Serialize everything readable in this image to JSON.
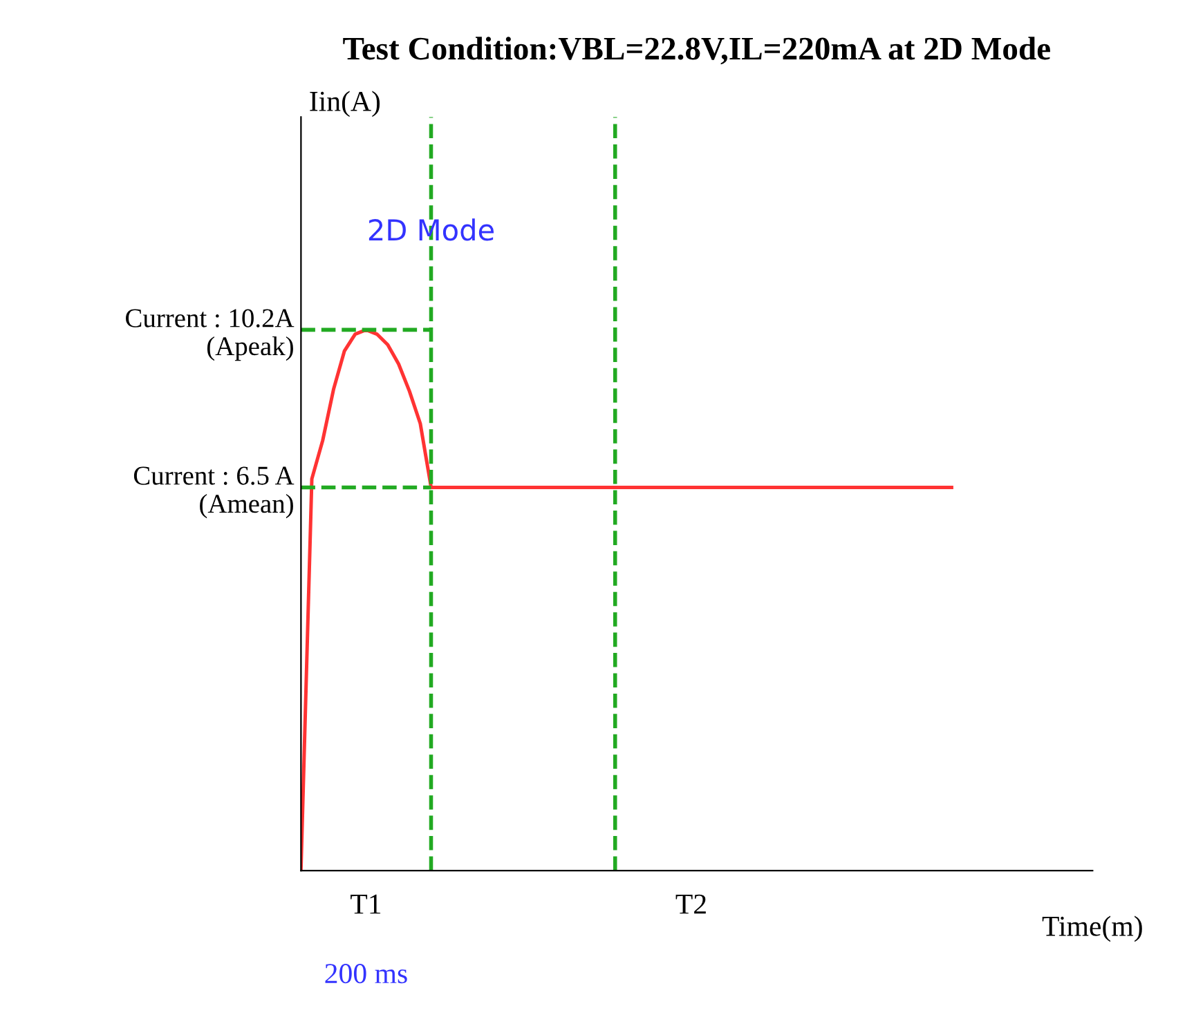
{
  "chart_data": {
    "type": "line",
    "title": "Test Condition:VBL=22.8V,IL=220mA at 2D Mode",
    "xlabel": "Time(m)",
    "ylabel": "Iin(A)",
    "categories": [
      null,
      null,
      null,
      null,
      null,
      null,
      "T1",
      null,
      null,
      null,
      null,
      null,
      null,
      null,
      null,
      null,
      null,
      null,
      null,
      null,
      null,
      null,
      null,
      null,
      null,
      null,
      null,
      null,
      null,
      null,
      null,
      null,
      null,
      null,
      null,
      null,
      "T2",
      null,
      null,
      null,
      null,
      null,
      null,
      null,
      null,
      null,
      null,
      null,
      null,
      null,
      null,
      null,
      null,
      null,
      null,
      null,
      null,
      null,
      null,
      null,
      null,
      null,
      null,
      null,
      null,
      null,
      null,
      null,
      null,
      null,
      null,
      null,
      null,
      null
    ],
    "series": [
      {
        "color": "#ff3333",
        "values": [
          -2.47,
          6.7,
          7.6,
          8.8,
          9.7,
          10.1,
          10.2,
          10.1,
          9.85,
          9.4,
          8.76,
          8.0,
          6.5,
          6.5,
          6.5,
          6.5,
          6.5,
          6.5,
          6.5,
          6.5,
          6.5,
          6.5,
          6.5,
          6.5,
          6.5,
          6.5,
          6.5,
          6.5,
          6.5,
          6.5,
          6.5,
          6.5,
          6.5,
          6.5,
          6.5,
          6.5,
          6.5,
          6.5,
          6.5,
          6.5,
          6.5,
          6.5,
          6.5,
          6.5,
          6.5,
          6.5,
          6.5,
          6.5,
          6.5,
          6.5,
          6.5,
          6.5,
          6.5,
          6.5,
          6.5,
          6.5,
          6.5,
          6.5,
          6.5,
          6.5,
          6.5,
          null,
          null,
          null,
          null,
          null,
          null,
          null,
          null,
          null,
          null,
          null,
          null,
          null
        ]
      }
    ],
    "ylim": [
      -2.5,
      15.2
    ],
    "yticks": [
      {
        "value": 6.5,
        "label": "Current : 6.5 A\n(Amean)"
      },
      {
        "value": 10.2,
        "label": "Current : 10.2A\n(Apeak)"
      }
    ],
    "grid": false,
    "marker": "none",
    "line_style": "solid",
    "ref_lines": [
      {
        "axis": "y",
        "value": 10.2,
        "color": "#22aa22",
        "line_style": "dashed"
      },
      {
        "axis": "y",
        "value": 6.5,
        "color": "#22aa22",
        "line_style": "dashed"
      }
    ],
    "annotations": [
      "2D Mode",
      "200 ms"
    ]
  }
}
